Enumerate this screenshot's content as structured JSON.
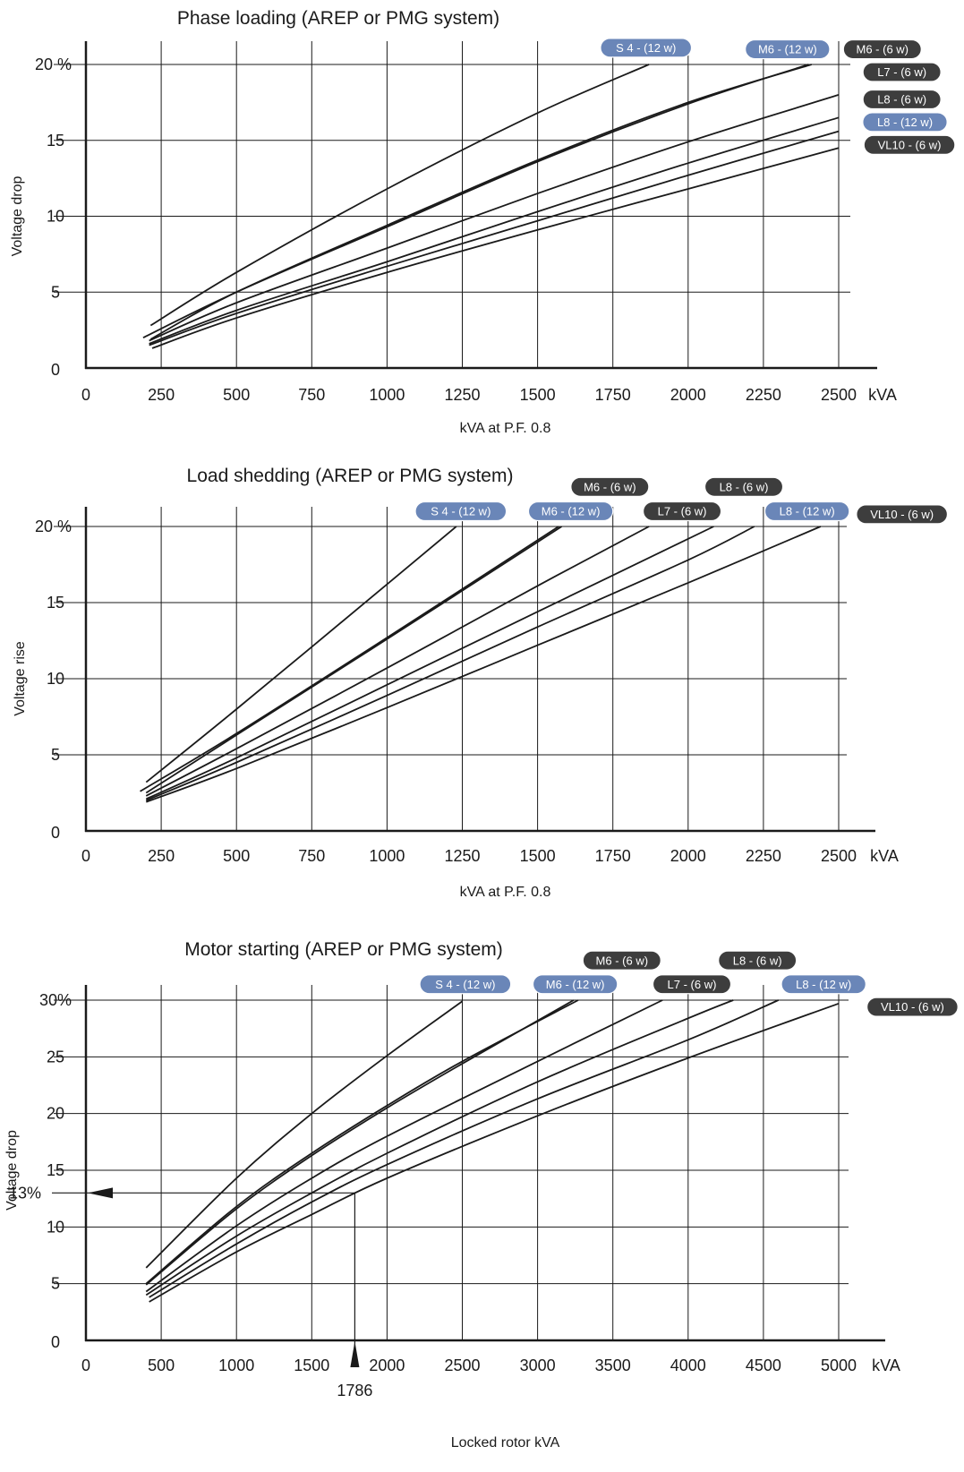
{
  "chart_data": [
    {
      "type": "line",
      "title": "Phase loading (AREP or PMG system)",
      "xlabel": "kVA at P.F. 0.8",
      "ylabel": "Voltage drop",
      "xunit": "kVA",
      "xlim": [
        0,
        2500
      ],
      "ylim": [
        0,
        20
      ],
      "xticks": [
        0,
        250,
        500,
        750,
        1000,
        1250,
        1500,
        1750,
        2000,
        2250,
        2500
      ],
      "yticks": [
        0,
        5,
        10,
        15,
        20
      ],
      "ytick_labels": [
        "0",
        "5",
        "10",
        "15",
        "20 %"
      ],
      "grid": true,
      "series": [
        {
          "name": "S 4 - (12 w)",
          "color": "#6a86b8",
          "x": [
            215,
            500,
            1000,
            1500,
            1870
          ],
          "y": [
            2.8,
            6.3,
            11.8,
            16.8,
            20
          ]
        },
        {
          "name": "M6 - (12 w)",
          "color": "#6a86b8",
          "x": [
            190,
            500,
            1000,
            1500,
            2000,
            2400
          ],
          "y": [
            2.0,
            5.0,
            9.3,
            13.6,
            17.4,
            20
          ]
        },
        {
          "name": "M6 - (6 w)",
          "color": "#3d3d3d",
          "x": [
            215,
            500,
            1000,
            1500,
            2000,
            2410
          ],
          "y": [
            1.9,
            5.0,
            9.4,
            13.7,
            17.5,
            20
          ]
        },
        {
          "name": "L7 - (6 w)",
          "color": "#3d3d3d",
          "x": [
            210,
            500,
            1000,
            1500,
            2000,
            2500
          ],
          "y": [
            1.8,
            4.3,
            7.9,
            11.5,
            14.9,
            18
          ]
        },
        {
          "name": "L8 - (6 w)",
          "color": "#3d3d3d",
          "x": [
            210,
            500,
            1000,
            1500,
            2000,
            2500
          ],
          "y": [
            1.6,
            3.8,
            7.0,
            10.3,
            13.5,
            16.5
          ]
        },
        {
          "name": "L8 - (12 w)",
          "color": "#6a86b8",
          "x": [
            210,
            500,
            1000,
            1500,
            2000,
            2500
          ],
          "y": [
            1.5,
            3.6,
            6.7,
            9.7,
            12.7,
            15.6
          ]
        },
        {
          "name": "VL10 - (6 w)",
          "color": "#3d3d3d",
          "x": [
            220,
            500,
            1000,
            1500,
            2000,
            2500
          ],
          "y": [
            1.3,
            3.3,
            6.3,
            9.1,
            11.8,
            14.5
          ]
        }
      ],
      "labels": [
        {
          "text": "S 4 - (12 w)",
          "color": "#6a86b8",
          "x": 1860,
          "y": 21.1
        },
        {
          "text": "M6 - (12 w)",
          "color": "#6a86b8",
          "x": 2330,
          "y": 21.0
        },
        {
          "text": "M6 - (6 w)",
          "color": "#3d3d3d",
          "x": 2645,
          "y": 21.0
        },
        {
          "text": "L7 - (6 w)",
          "color": "#3d3d3d",
          "x": 2710,
          "y": 19.5
        },
        {
          "text": "L8 - (6 w)",
          "color": "#3d3d3d",
          "x": 2710,
          "y": 17.7
        },
        {
          "text": "L8 - (12 w)",
          "color": "#6a86b8",
          "x": 2720,
          "y": 16.2
        },
        {
          "text": "VL10 - (6 w)",
          "color": "#3d3d3d",
          "x": 2735,
          "y": 14.7
        }
      ]
    },
    {
      "type": "line",
      "title": "Load shedding (AREP or PMG system)",
      "xlabel": "kVA at P.F. 0.8",
      "ylabel": "Voltage rise",
      "xunit": "kVA",
      "xlim": [
        0,
        2500
      ],
      "ylim": [
        0,
        20
      ],
      "xticks": [
        0,
        250,
        500,
        750,
        1000,
        1250,
        1500,
        1750,
        2000,
        2250,
        2500
      ],
      "yticks": [
        0,
        5,
        10,
        15,
        20
      ],
      "ytick_labels": [
        "0",
        "5",
        "10",
        "15",
        "20 %"
      ],
      "grid": true,
      "series": [
        {
          "name": "S 4 - (12 w)",
          "color": "#6a86b8",
          "x": [
            200,
            500,
            1000,
            1230
          ],
          "y": [
            3.2,
            8.0,
            16.2,
            20
          ]
        },
        {
          "name": "M6 - (12 w)",
          "color": "#6a86b8",
          "x": [
            180,
            500,
            1000,
            1570
          ],
          "y": [
            2.6,
            6.4,
            12.7,
            20
          ]
        },
        {
          "name": "M6 - (6 w)",
          "color": "#3d3d3d",
          "x": [
            200,
            500,
            1000,
            1580
          ],
          "y": [
            2.5,
            6.3,
            12.6,
            20
          ]
        },
        {
          "name": "L7 - (6 w)",
          "color": "#3d3d3d",
          "x": [
            200,
            500,
            1000,
            1500,
            1870
          ],
          "y": [
            2.3,
            5.4,
            10.7,
            16.1,
            20
          ]
        },
        {
          "name": "L8 - (6 w)",
          "color": "#3d3d3d",
          "x": [
            200,
            500,
            1000,
            1500,
            2085
          ],
          "y": [
            2.1,
            4.8,
            9.6,
            14.4,
            20
          ]
        },
        {
          "name": "L8 - (12 w)",
          "color": "#6a86b8",
          "x": [
            200,
            500,
            1000,
            1500,
            2000,
            2220
          ],
          "y": [
            2.0,
            4.5,
            8.9,
            13.4,
            17.8,
            20
          ]
        },
        {
          "name": "VL10 - (6 w)",
          "color": "#3d3d3d",
          "x": [
            200,
            500,
            1000,
            1500,
            2000,
            2440
          ],
          "y": [
            1.9,
            4.1,
            8.1,
            12.2,
            16.3,
            20
          ]
        }
      ],
      "labels": [
        {
          "text": "S 4 - (12 w)",
          "color": "#6a86b8",
          "x": 1245,
          "y": 21.0
        },
        {
          "text": "M6 - (6 w)",
          "color": "#3d3d3d",
          "x": 1740,
          "y": 22.6
        },
        {
          "text": "M6 - (12 w)",
          "color": "#6a86b8",
          "x": 1610,
          "y": 21.0
        },
        {
          "text": "L7 - (6 w)",
          "color": "#3d3d3d",
          "x": 1980,
          "y": 21.0
        },
        {
          "text": "L8 - (6 w)",
          "color": "#3d3d3d",
          "x": 2185,
          "y": 22.6
        },
        {
          "text": "L8 - (12 w)",
          "color": "#6a86b8",
          "x": 2395,
          "y": 21.0
        },
        {
          "text": "VL10 - (6 w)",
          "color": "#3d3d3d",
          "x": 2710,
          "y": 20.8
        }
      ]
    },
    {
      "type": "line",
      "title": "Motor starting (AREP or PMG system)",
      "xlabel": "Locked rotor kVA",
      "ylabel": "Voltage drop",
      "xunit": "kVA",
      "xlim": [
        0,
        5000
      ],
      "ylim": [
        0,
        30
      ],
      "xticks": [
        0,
        500,
        1000,
        1500,
        2000,
        2500,
        3000,
        3500,
        4000,
        4500,
        5000
      ],
      "yticks": [
        0,
        5,
        10,
        15,
        20,
        25,
        30
      ],
      "ytick_labels": [
        "0",
        "5",
        "10",
        "15",
        "20",
        "25",
        "30%"
      ],
      "grid": true,
      "series": [
        {
          "name": "S 4 - (12 w)",
          "color": "#6a86b8",
          "x": [
            400,
            1000,
            1500,
            2000,
            2500
          ],
          "y": [
            6.4,
            14.3,
            20.0,
            25.1,
            29.9
          ]
        },
        {
          "name": "M6 - (12 w)",
          "color": "#6a86b8",
          "x": [
            400,
            1000,
            1500,
            2000,
            2500,
            3240
          ],
          "y": [
            4.9,
            11.6,
            16.3,
            20.5,
            24.4,
            30
          ]
        },
        {
          "name": "M6 - (6 w)",
          "color": "#3d3d3d",
          "x": [
            400,
            1000,
            1500,
            2000,
            2500,
            3270
          ],
          "y": [
            5.0,
            11.8,
            16.5,
            20.7,
            24.6,
            30
          ]
        },
        {
          "name": "L7 - (6 w)",
          "color": "#3d3d3d",
          "x": [
            400,
            1000,
            1500,
            2000,
            3000,
            3830
          ],
          "y": [
            4.3,
            10.1,
            14.3,
            18.0,
            24.6,
            30
          ]
        },
        {
          "name": "L8 - (6 w)",
          "color": "#3d3d3d",
          "x": [
            400,
            1000,
            1500,
            2000,
            3000,
            4000,
            4300
          ],
          "y": [
            4.0,
            9.2,
            13.0,
            16.5,
            22.8,
            28.4,
            30
          ]
        },
        {
          "name": "L8 - (12 w)",
          "color": "#6a86b8",
          "x": [
            420,
            1000,
            1500,
            2000,
            3000,
            4000,
            4600
          ],
          "y": [
            3.8,
            8.5,
            12.2,
            15.5,
            21.3,
            26.5,
            30
          ]
        },
        {
          "name": "VL10 - (6 w)",
          "color": "#3d3d3d",
          "x": [
            420,
            1000,
            1500,
            2000,
            3000,
            4000,
            5000
          ],
          "y": [
            3.4,
            7.8,
            11.1,
            14.3,
            19.8,
            24.9,
            29.7
          ]
        }
      ],
      "labels": [
        {
          "text": "S 4 - (12 w)",
          "color": "#6a86b8",
          "x": 2520,
          "y": 31.4
        },
        {
          "text": "M6 - (6 w)",
          "color": "#3d3d3d",
          "x": 3560,
          "y": 33.5
        },
        {
          "text": "M6 - (12 w)",
          "color": "#6a86b8",
          "x": 3250,
          "y": 31.4
        },
        {
          "text": "L7 - (6 w)",
          "color": "#3d3d3d",
          "x": 4025,
          "y": 31.4
        },
        {
          "text": "L8 - (6 w)",
          "color": "#3d3d3d",
          "x": 4460,
          "y": 33.5
        },
        {
          "text": "L8 - (12 w)",
          "color": "#6a86b8",
          "x": 4900,
          "y": 31.4
        },
        {
          "text": "VL10 - (6 w)",
          "color": "#3d3d3d",
          "x": 5490,
          "y": 29.4
        }
      ],
      "example": {
        "x": 1786,
        "y": 13,
        "x_label": "1786",
        "y_label": "13%"
      }
    }
  ]
}
